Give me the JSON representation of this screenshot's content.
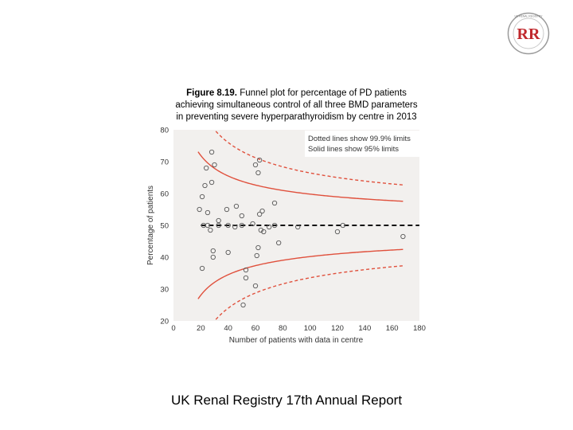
{
  "header": {
    "logo_text": "RR",
    "logo_ring_text": "UK RENAL REGISTRY"
  },
  "caption": {
    "label": "Figure 8.19.",
    "text_line1": "Funnel plot for percentage of PD patients",
    "text_line2": "achieving simultaneous control of all three BMD parameters",
    "text_line3": "in preventing severe hyperparathyroidism by centre in 2013"
  },
  "footer": {
    "text": "UK Renal Registry 17th Annual Report"
  },
  "colors": {
    "limit_line": "#e0503c",
    "target_line": "#111111",
    "point_stroke": "#555555",
    "plot_bg": "#f2f0ee",
    "legend_bg": "#ffffff",
    "logo_red": "#c0282d"
  },
  "chart_data": {
    "type": "scatter",
    "subtype": "funnel",
    "xlabel": "Number of patients with data in centre",
    "ylabel": "Percentage of patients",
    "xlim": [
      0,
      180
    ],
    "ylim": [
      20,
      80
    ],
    "xticks": [
      0,
      20,
      40,
      60,
      80,
      100,
      120,
      140,
      160,
      180
    ],
    "yticks": [
      20,
      30,
      40,
      50,
      60,
      70,
      80
    ],
    "target": 50,
    "legend": [
      "Dotted lines show 99.9% limits",
      "Solid lines show 95% limits"
    ],
    "points": [
      [
        19,
        55
      ],
      [
        21,
        36.5
      ],
      [
        21,
        59
      ],
      [
        22,
        50
      ],
      [
        23,
        62.5
      ],
      [
        24,
        68
      ],
      [
        25,
        54
      ],
      [
        25,
        50
      ],
      [
        27,
        48.5
      ],
      [
        28,
        73
      ],
      [
        28,
        63.5
      ],
      [
        29,
        40
      ],
      [
        29,
        42
      ],
      [
        30,
        69
      ],
      [
        33,
        51.5
      ],
      [
        33,
        50
      ],
      [
        39,
        55
      ],
      [
        40,
        50
      ],
      [
        40,
        41.5
      ],
      [
        45,
        49.5
      ],
      [
        46,
        56
      ],
      [
        50,
        53
      ],
      [
        50,
        50
      ],
      [
        53,
        36
      ],
      [
        53,
        33.5
      ],
      [
        51,
        25
      ],
      [
        58,
        50.5
      ],
      [
        60,
        69
      ],
      [
        60,
        31
      ],
      [
        61,
        40.5
      ],
      [
        62,
        43
      ],
      [
        62,
        66.5
      ],
      [
        63,
        53.5
      ],
      [
        63,
        70.5
      ],
      [
        64,
        48.5
      ],
      [
        65,
        54.5
      ],
      [
        66,
        48
      ],
      [
        70,
        49.5
      ],
      [
        74,
        57
      ],
      [
        74,
        50
      ],
      [
        77,
        44.5
      ],
      [
        91,
        49.5
      ],
      [
        120,
        48
      ],
      [
        124,
        50
      ],
      [
        168,
        46.5
      ]
    ]
  }
}
